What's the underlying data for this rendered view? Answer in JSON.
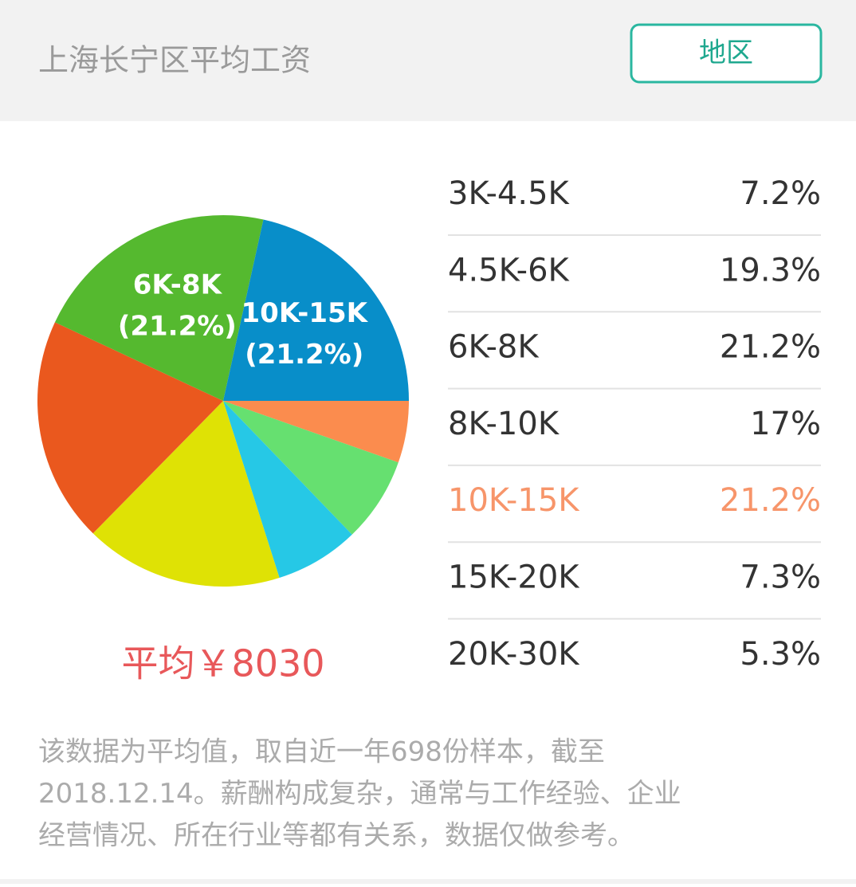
{
  "header": {
    "title": "上海长宁区平均工资",
    "button": "地区"
  },
  "chart_data": {
    "type": "pie",
    "categories": [
      null,
      null,
      null,
      null,
      null,
      "6K-8K",
      "10K-15K"
    ],
    "values": [
      5.3,
      7.3,
      7.2,
      17,
      19.3,
      21.2,
      21.2
    ],
    "value_labels": [
      null,
      null,
      null,
      null,
      null,
      "(21.2%)",
      "(21.2%)"
    ],
    "colors": [
      "#fb8c4e",
      "#66e070",
      "#26c8e6",
      "#dfe205",
      "#ea581e",
      "#55b92f",
      "#088ec9"
    ]
  },
  "table": {
    "rows": [
      [
        "3K-4.5K",
        "7.2%"
      ],
      [
        "4.5K-6K",
        "19.3%"
      ],
      [
        "6K-8K",
        "21.2%"
      ],
      [
        "8K-10K",
        "17%"
      ],
      [
        "10K-15K",
        "21.2%"
      ],
      [
        "15K-20K",
        "7.3%"
      ],
      [
        "20K-30K",
        "5.3%"
      ]
    ]
  },
  "average": "平均￥8030",
  "note": {
    "lines": [
      "该数据为平均值，取自近一年698份样本，截至",
      "2018.12.14。薪酬构成复杂，通常与工作经验、企业",
      "经营情况、所在行业等都有关系，数据仅做参考。"
    ]
  }
}
